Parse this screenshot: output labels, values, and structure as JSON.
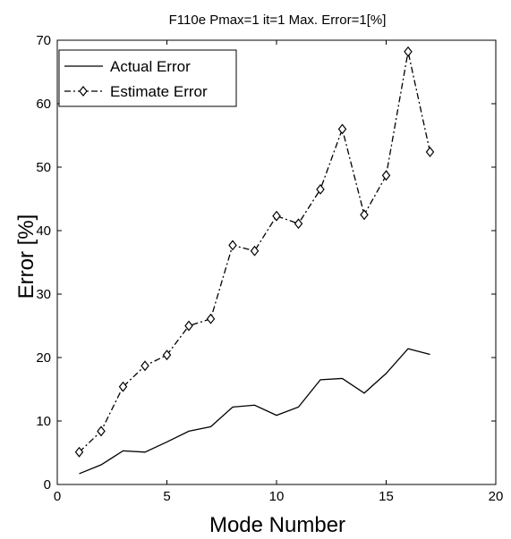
{
  "chart_data": {
    "type": "line",
    "title": "F110e   Pmax=1 it=1 Max. Error=1[%]",
    "xlabel": "Mode Number",
    "ylabel": "Error [%]",
    "xlim": [
      0,
      20
    ],
    "ylim": [
      0,
      70
    ],
    "xticks": [
      0,
      5,
      10,
      15,
      20
    ],
    "yticks": [
      0,
      10,
      20,
      30,
      40,
      50,
      60,
      70
    ],
    "grid": false,
    "legend_position": "top-left",
    "x": [
      1,
      2,
      3,
      4,
      5,
      6,
      7,
      8,
      9,
      10,
      11,
      12,
      13,
      14,
      15,
      16,
      17
    ],
    "series": [
      {
        "name": "Actual Error",
        "style": "solid",
        "marker": "none",
        "color": "#000000",
        "values": [
          1.7,
          3.1,
          5.3,
          5.1,
          6.7,
          8.4,
          9.1,
          12.2,
          12.5,
          10.9,
          12.2,
          16.5,
          16.7,
          14.4,
          17.5,
          21.4,
          20.5
        ]
      },
      {
        "name": "Estimate Error",
        "style": "dashdot",
        "marker": "diamond",
        "color": "#000000",
        "values": [
          5.1,
          8.4,
          15.4,
          18.7,
          20.4,
          25.0,
          26.1,
          37.7,
          36.8,
          42.3,
          41.1,
          46.5,
          56.0,
          42.5,
          48.7,
          68.2,
          52.4
        ]
      }
    ]
  }
}
